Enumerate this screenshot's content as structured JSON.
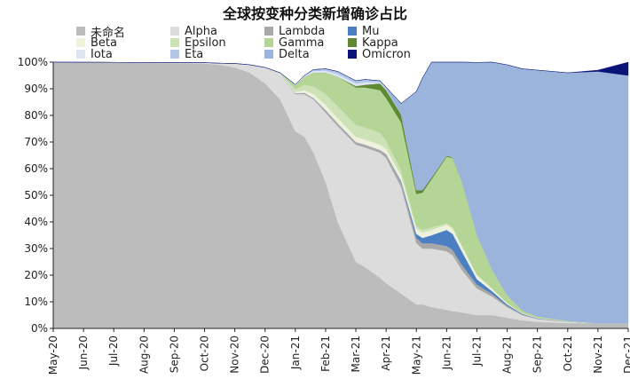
{
  "chart_data": {
    "type": "area",
    "stacked": true,
    "normalized": true,
    "title": "全球按变种分类新增确诊占比",
    "xlabel": "",
    "ylabel": "",
    "ylim": [
      0,
      100
    ],
    "y_ticks": [
      "0%",
      "10%",
      "20%",
      "30%",
      "40%",
      "50%",
      "60%",
      "70%",
      "80%",
      "90%",
      "100%"
    ],
    "x_ticks": [
      "May-20",
      "Jun-20",
      "Jul-20",
      "Aug-20",
      "Sep-20",
      "Oct-20",
      "Nov-20",
      "Dec-20",
      "Jan-21",
      "Feb-21",
      "Mar-21",
      "Apr-21",
      "May-21",
      "Jun-21",
      "Jul-21",
      "Aug-21",
      "Sep-21",
      "Oct-21",
      "Nov-21",
      "Dec-21"
    ],
    "x": [
      0,
      5,
      5.5,
      6,
      6.5,
      7,
      7.5,
      8,
      8.3,
      8.6,
      9,
      9.4,
      10,
      10.3,
      10.8,
      11,
      11.5,
      12,
      12.2,
      12.5,
      13,
      13.2,
      13.5,
      14,
      14.5,
      15,
      15.5,
      16,
      17,
      18,
      19
    ],
    "series": [
      {
        "name": "未命名",
        "color": "#bdbcbc",
        "values": [
          100,
          99.5,
          99,
          98,
          96,
          92,
          86,
          74,
          72,
          66,
          55,
          40,
          25,
          23,
          19,
          17,
          13,
          9,
          9,
          8,
          7,
          6.5,
          6,
          5,
          5,
          4,
          3,
          2.5,
          2,
          2,
          2
        ]
      },
      {
        "name": "Alpha",
        "color": "#dcdcdc",
        "values": [
          0,
          0.3,
          0.6,
          1.5,
          3,
          6,
          10,
          14,
          16,
          20,
          26,
          36,
          44,
          45,
          47,
          47,
          40,
          23,
          21,
          22,
          22,
          21,
          16,
          10,
          7,
          4,
          2,
          1,
          0.5,
          0,
          0
        ]
      },
      {
        "name": "Lambda",
        "color": "#a8a8a8",
        "values": [
          0,
          0,
          0,
          0,
          0,
          0,
          0,
          0.3,
          0.5,
          0.5,
          1,
          1,
          1,
          1,
          1,
          1.5,
          2,
          2,
          2,
          2,
          2,
          2,
          2,
          1.5,
          1,
          0.5,
          0.3,
          0.2,
          0.1,
          0,
          0
        ]
      },
      {
        "name": "Mu",
        "color": "#4a7fc4",
        "values": [
          0,
          0,
          0,
          0,
          0,
          0,
          0,
          0,
          0,
          0,
          0,
          0,
          0,
          0,
          0,
          0,
          0.3,
          1.5,
          2,
          3,
          6,
          6,
          5,
          2,
          1,
          0.5,
          0.2,
          0.1,
          0,
          0,
          0
        ]
      },
      {
        "name": "Beta",
        "color": "#eef1dc",
        "values": [
          0,
          0,
          0,
          0,
          0,
          0,
          0,
          0.5,
          1,
          1.5,
          2,
          2,
          2,
          2,
          2,
          2,
          2,
          2,
          2,
          2,
          2,
          2,
          2,
          1.5,
          1,
          0.5,
          0.3,
          0.2,
          0.1,
          0,
          0
        ]
      },
      {
        "name": "Epsilon",
        "color": "#cde2b6",
        "values": [
          0,
          0,
          0,
          0,
          0,
          0,
          0,
          1,
          2,
          3,
          4,
          4.5,
          4.5,
          4.5,
          4.5,
          3,
          2,
          1,
          1,
          1,
          0.5,
          0.5,
          0.3,
          0.2,
          0.1,
          0,
          0,
          0,
          0,
          0,
          0
        ]
      },
      {
        "name": "Gamma",
        "color": "#b5d597",
        "values": [
          0,
          0,
          0,
          0,
          0,
          0,
          0,
          1.5,
          3,
          5,
          8,
          11,
          14,
          15,
          16,
          16,
          18,
          12,
          14,
          18,
          25,
          26,
          24,
          15,
          7,
          3,
          1,
          0.5,
          0.2,
          0,
          0
        ]
      },
      {
        "name": "Kappa",
        "color": "#5f8a33",
        "values": [
          0,
          0,
          0,
          0,
          0,
          0,
          0,
          0,
          0,
          0,
          0,
          0,
          0.5,
          1,
          2.5,
          3,
          3,
          1.5,
          1,
          0.7,
          0.5,
          0.3,
          0.2,
          0.1,
          0,
          0,
          0,
          0,
          0,
          0,
          0
        ]
      },
      {
        "name": "Iota",
        "color": "#dde5f3",
        "values": [
          0,
          0,
          0,
          0,
          0,
          0,
          0,
          0.3,
          0.5,
          0.7,
          0.8,
          1,
          1,
          1,
          0.5,
          0.3,
          0.1,
          0,
          0,
          0,
          0,
          0,
          0,
          0,
          0,
          0,
          0,
          0,
          0,
          0,
          0
        ]
      },
      {
        "name": "Eta",
        "color": "#b3c6e6",
        "values": [
          0,
          0,
          0,
          0,
          0,
          0,
          0,
          0,
          0,
          0.5,
          0.7,
          1,
          1,
          1,
          0.5,
          0.3,
          0.1,
          0,
          0,
          0,
          0,
          0,
          0,
          0,
          0,
          0,
          0,
          0,
          0,
          0,
          0
        ]
      },
      {
        "name": "Delta",
        "color": "#9ab4db",
        "values": [
          0,
          0,
          0,
          0,
          0,
          0,
          0,
          0,
          0,
          0,
          0,
          0,
          0,
          0,
          0,
          0.5,
          4,
          37,
          42,
          45,
          35,
          39,
          49.3,
          64.6,
          77.9,
          86.5,
          90.7,
          92.5,
          93.1,
          94.5,
          93
        ]
      },
      {
        "name": "Omicron",
        "color": "#0a1476",
        "values": [
          0,
          0,
          0,
          0,
          0,
          0,
          0,
          0,
          0,
          0,
          0,
          0,
          0,
          0,
          0,
          0,
          0,
          0,
          0,
          0,
          0,
          0,
          0,
          0,
          0,
          0,
          0,
          0,
          0,
          0.5,
          5
        ]
      }
    ]
  }
}
